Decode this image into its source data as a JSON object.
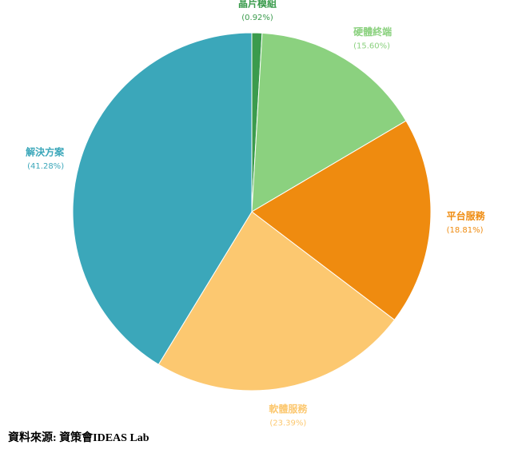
{
  "chart_data": {
    "type": "pie",
    "categories": [
      "晶片模組",
      "硬體終端",
      "平台服務",
      "軟體服務",
      "解決方案"
    ],
    "values": [
      0.92,
      15.6,
      18.81,
      23.39,
      41.28
    ],
    "value_labels": [
      "(0.92%)",
      "(15.60%)",
      "(18.81%)",
      "(23.39%)",
      "(41.28%)"
    ],
    "colors": [
      "#3b9b4d",
      "#8bd17f",
      "#ef8b0f",
      "#fcc870",
      "#3ba7ba"
    ],
    "source": "資料來源: 資策會IDEAS Lab"
  }
}
